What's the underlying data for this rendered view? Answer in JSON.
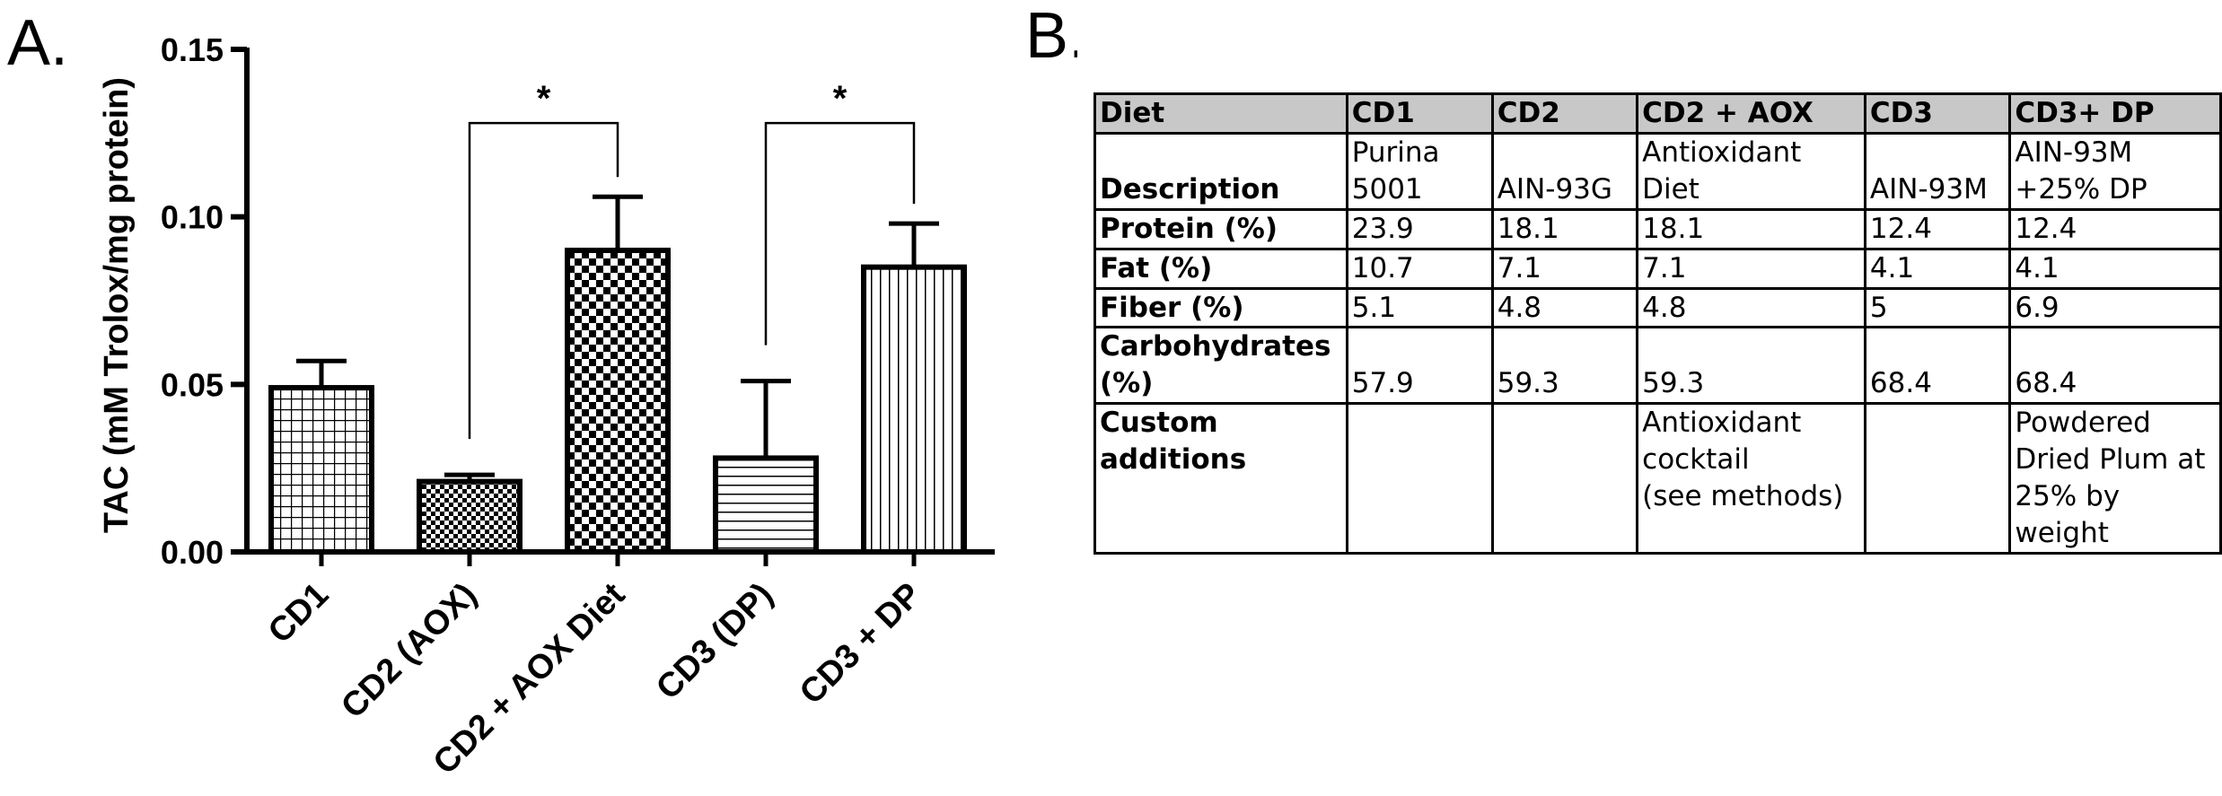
{
  "panel_a_label": "A.",
  "panel_b_label": "B.",
  "chart_data": {
    "type": "bar",
    "ylabel": "TAC  (mM Trolox/mg protein)",
    "xlabel": "",
    "ylim": [
      0,
      0.15
    ],
    "yticks": [
      0.0,
      0.05,
      0.1,
      0.15
    ],
    "ytick_labels": [
      "0.00",
      "0.05",
      "0.10",
      "0.15"
    ],
    "categories": [
      "CD1",
      "CD2 (AOX)",
      "CD2 + AOX Diet",
      "CD3 (DP)",
      "CD3 + DP"
    ],
    "values": [
      0.049,
      0.021,
      0.09,
      0.028,
      0.085
    ],
    "errors": [
      0.008,
      0.002,
      0.016,
      0.023,
      0.013
    ],
    "patterns": [
      "grid",
      "checker-fine",
      "checker",
      "horizontal",
      "vertical"
    ],
    "significance": [
      {
        "from": 1,
        "to": 2,
        "label": "*",
        "level": 0.128
      },
      {
        "from": 3,
        "to": 4,
        "label": "*",
        "level": 0.128
      }
    ]
  },
  "table": {
    "headers": [
      "Diet",
      "CD1",
      "CD2",
      "CD2 + AOX",
      "CD3",
      "CD3+ DP"
    ],
    "rows": [
      {
        "label": "Description",
        "cells": [
          "Purina\n5001",
          "AIN-93G",
          "Antioxidant\nDiet",
          "AIN-93M",
          "AIN-93M\n+25% DP"
        ]
      },
      {
        "label": "Protein (%)",
        "cells": [
          "23.9",
          "18.1",
          "18.1",
          "12.4",
          "12.4"
        ]
      },
      {
        "label": "Fat (%)",
        "cells": [
          "10.7",
          "7.1",
          "7.1",
          "4.1",
          "4.1"
        ]
      },
      {
        "label": "Fiber (%)",
        "cells": [
          "5.1",
          "4.8",
          "4.8",
          "5",
          "6.9"
        ]
      },
      {
        "label": "Carbohydrates\n(%)",
        "cells": [
          "57.9",
          "59.3",
          "59.3",
          "68.4",
          "68.4"
        ]
      },
      {
        "label": "Custom\nadditions",
        "cells": [
          "",
          "",
          "Antioxidant\ncocktail\n(see methods)",
          "",
          "Powdered\nDried Plum at\n25% by\nweight"
        ]
      }
    ]
  }
}
